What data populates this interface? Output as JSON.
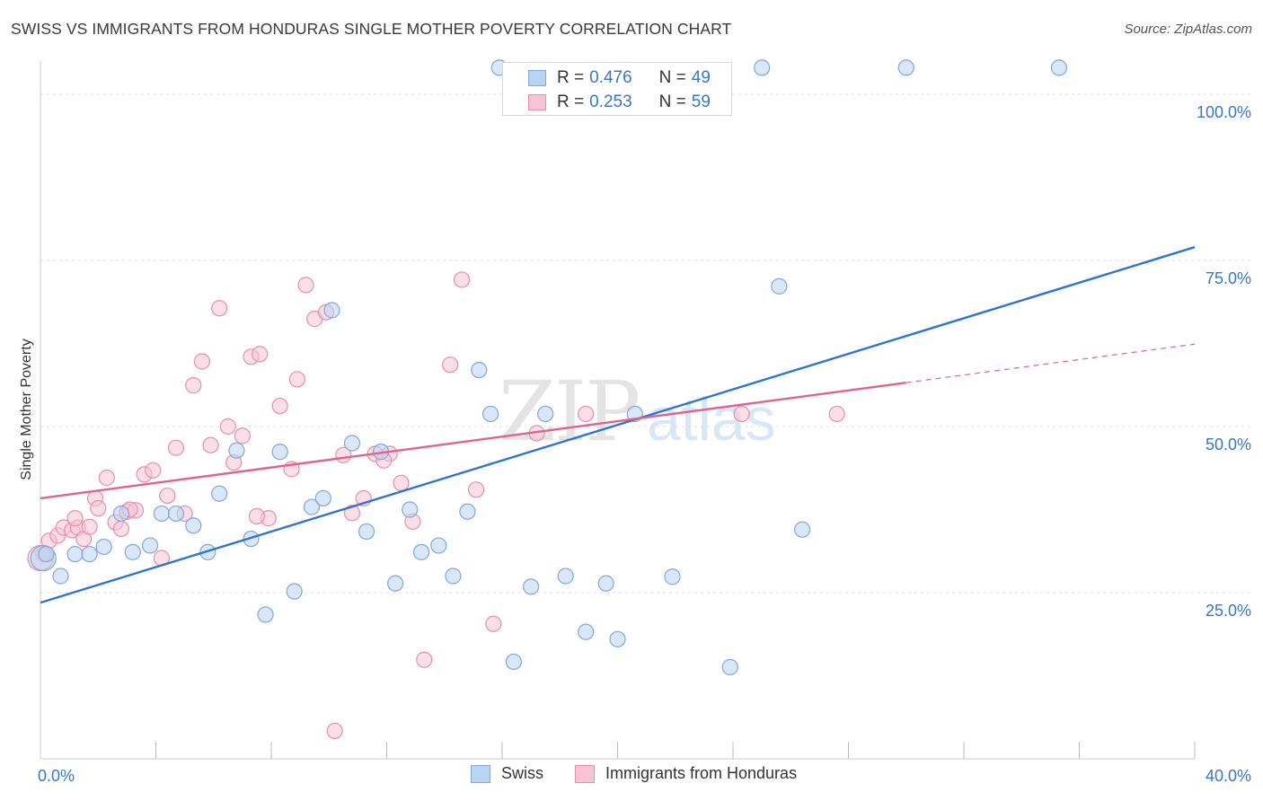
{
  "title": "SWISS VS IMMIGRANTS FROM HONDURAS SINGLE MOTHER POVERTY CORRELATION CHART",
  "source": "Source: ZipAtlas.com",
  "watermark": {
    "zip": "ZIP",
    "atlas": "atlas"
  },
  "legend_top": {
    "swiss": {
      "r_label": "R =",
      "r_value": "0.476",
      "n_label": "N =",
      "n_value": "49"
    },
    "honduras": {
      "r_label": "R =",
      "r_value": "0.253",
      "n_label": "N =",
      "n_value": "59"
    }
  },
  "legend_bottom": {
    "swiss": "Swiss",
    "honduras": "Immigrants from Honduras"
  },
  "colors": {
    "swiss_fill": "#b9d3f3",
    "swiss_stroke": "#7fa8dc",
    "swiss_line": "#2f74d0",
    "honduras_fill": "#f7c4d3",
    "honduras_stroke": "#e88fab",
    "honduras_line": "#e0628f",
    "tick_label": "#3a76c8",
    "grid": "#dddddd"
  },
  "chart_data": {
    "type": "scatter",
    "ylabel": "Single Mother Poverty",
    "xlim": [
      0,
      40
    ],
    "ylim": [
      0,
      105
    ],
    "x_tick_labels": [
      {
        "value": 0,
        "label": "0.0%"
      },
      {
        "value": 40,
        "label": "40.0%"
      }
    ],
    "x_minor_ticks": [
      4,
      8,
      12,
      16,
      20,
      24,
      28,
      32,
      36,
      40
    ],
    "y_tick_labels": [
      {
        "value": 25,
        "label": "25.0%"
      },
      {
        "value": 50,
        "label": "50.0%"
      },
      {
        "value": 75,
        "label": "75.0%"
      },
      {
        "value": 100,
        "label": "100.0%"
      }
    ],
    "grid": true,
    "series": [
      {
        "name": "Swiss",
        "trend": {
          "x": [
            0,
            40
          ],
          "y": [
            23.5,
            77
          ]
        },
        "points": [
          [
            0.1,
            30.2
          ],
          [
            0.2,
            30.8
          ],
          [
            0.7,
            27.5
          ],
          [
            1.2,
            30.8
          ],
          [
            1.7,
            30.8
          ],
          [
            2.2,
            31.9
          ],
          [
            2.8,
            36.9
          ],
          [
            3.2,
            31.1
          ],
          [
            3.8,
            32.1
          ],
          [
            4.2,
            36.9
          ],
          [
            4.7,
            36.9
          ],
          [
            5.3,
            35.1
          ],
          [
            5.8,
            31.1
          ],
          [
            6.2,
            39.9
          ],
          [
            6.8,
            46.4
          ],
          [
            7.3,
            33.1
          ],
          [
            7.8,
            21.7
          ],
          [
            8.3,
            46.2
          ],
          [
            8.8,
            25.2
          ],
          [
            9.4,
            37.9
          ],
          [
            9.8,
            39.2
          ],
          [
            10.1,
            67.5
          ],
          [
            10.8,
            47.5
          ],
          [
            11.3,
            34.2
          ],
          [
            11.8,
            46.2
          ],
          [
            12.3,
            26.4
          ],
          [
            12.8,
            37.5
          ],
          [
            13.2,
            31.1
          ],
          [
            13.8,
            32.1
          ],
          [
            14.3,
            27.5
          ],
          [
            14.8,
            37.2
          ],
          [
            15.2,
            58.5
          ],
          [
            15.6,
            51.9
          ],
          [
            15.9,
            104
          ],
          [
            16.4,
            14.6
          ],
          [
            17.0,
            25.9
          ],
          [
            17.5,
            51.9
          ],
          [
            18.2,
            27.5
          ],
          [
            18.9,
            19.1
          ],
          [
            19.6,
            26.4
          ],
          [
            20.0,
            18.0
          ],
          [
            20.6,
            51.9
          ],
          [
            21.9,
            27.4
          ],
          [
            23.9,
            13.8
          ],
          [
            25.0,
            104
          ],
          [
            25.6,
            71.1
          ],
          [
            26.4,
            34.5
          ],
          [
            30.0,
            104
          ],
          [
            35.3,
            104
          ]
        ]
      },
      {
        "name": "Immigrants from Honduras",
        "trend": {
          "x": [
            0,
            30
          ],
          "y": [
            39.2,
            56.6
          ]
        },
        "trend_dashed": {
          "x": [
            30,
            40
          ],
          "y": [
            56.6,
            62.4
          ]
        },
        "points": [
          [
            0.1,
            30.8
          ],
          [
            0.3,
            32.8
          ],
          [
            0.6,
            33.6
          ],
          [
            0.8,
            34.8
          ],
          [
            1.1,
            34.4
          ],
          [
            1.3,
            34.8
          ],
          [
            1.5,
            33.1
          ],
          [
            1.7,
            34.9
          ],
          [
            1.9,
            39.2
          ],
          [
            2.0,
            37.7
          ],
          [
            2.3,
            42.3
          ],
          [
            2.6,
            35.6
          ],
          [
            2.8,
            34.6
          ],
          [
            3.0,
            37.2
          ],
          [
            3.3,
            37.4
          ],
          [
            3.6,
            42.8
          ],
          [
            3.9,
            43.4
          ],
          [
            4.2,
            30.2
          ],
          [
            4.4,
            39.6
          ],
          [
            4.7,
            46.8
          ],
          [
            5.0,
            36.9
          ],
          [
            5.3,
            56.2
          ],
          [
            5.6,
            59.8
          ],
          [
            5.9,
            47.2
          ],
          [
            6.2,
            67.8
          ],
          [
            6.5,
            50.0
          ],
          [
            6.7,
            44.6
          ],
          [
            7.0,
            48.6
          ],
          [
            7.3,
            60.5
          ],
          [
            7.6,
            60.9
          ],
          [
            7.9,
            36.2
          ],
          [
            8.3,
            53.1
          ],
          [
            8.7,
            43.6
          ],
          [
            8.9,
            57.1
          ],
          [
            9.2,
            71.3
          ],
          [
            9.5,
            66.2
          ],
          [
            9.9,
            67.2
          ],
          [
            10.2,
            4.2
          ],
          [
            10.8,
            37.0
          ],
          [
            11.2,
            39.2
          ],
          [
            11.6,
            45.9
          ],
          [
            12.1,
            45.9
          ],
          [
            12.5,
            41.5
          ],
          [
            12.9,
            35.7
          ],
          [
            13.3,
            14.9
          ],
          [
            14.2,
            59.3
          ],
          [
            14.6,
            72.1
          ],
          [
            15.1,
            40.5
          ],
          [
            15.7,
            20.3
          ],
          [
            17.2,
            49.0
          ],
          [
            18.9,
            51.9
          ],
          [
            24.3,
            51.9
          ],
          [
            27.6,
            51.9
          ],
          [
            0.0,
            30.2
          ],
          [
            1.2,
            36.2
          ],
          [
            3.1,
            37.5
          ],
          [
            7.5,
            36.5
          ],
          [
            10.5,
            45.7
          ],
          [
            11.9,
            44.9
          ]
        ]
      }
    ]
  }
}
